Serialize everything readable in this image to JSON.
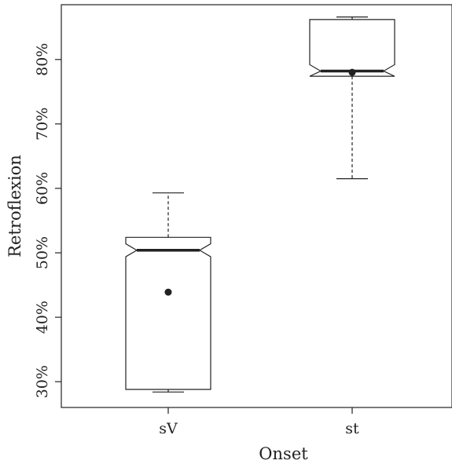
{
  "chart_data": {
    "type": "box",
    "xlabel": "Onset",
    "ylabel": "Retroflexion",
    "ylim": [
      26,
      88.5
    ],
    "y_ticks": [
      30,
      40,
      50,
      60,
      70,
      80
    ],
    "y_tick_labels": [
      "30%",
      "40%",
      "50%",
      "60%",
      "70%",
      "80%"
    ],
    "notched": true,
    "categories": [
      "sV",
      "st"
    ],
    "boxes": [
      {
        "category": "sV",
        "whisker_low": 28.4,
        "q1": 28.8,
        "median": 50.4,
        "q3": 52.4,
        "whisker_high": 59.3,
        "notch_low": 49.4,
        "notch_high": 51.4,
        "mean": 43.9
      },
      {
        "category": "st",
        "whisker_low": 61.5,
        "q1": 77.4,
        "median": 78.2,
        "q3": 86.2,
        "whisker_high": 86.6,
        "notch_low": 77.2,
        "notch_high": 79.2,
        "mean": 78.0
      }
    ],
    "grid": false,
    "legend": "none"
  }
}
